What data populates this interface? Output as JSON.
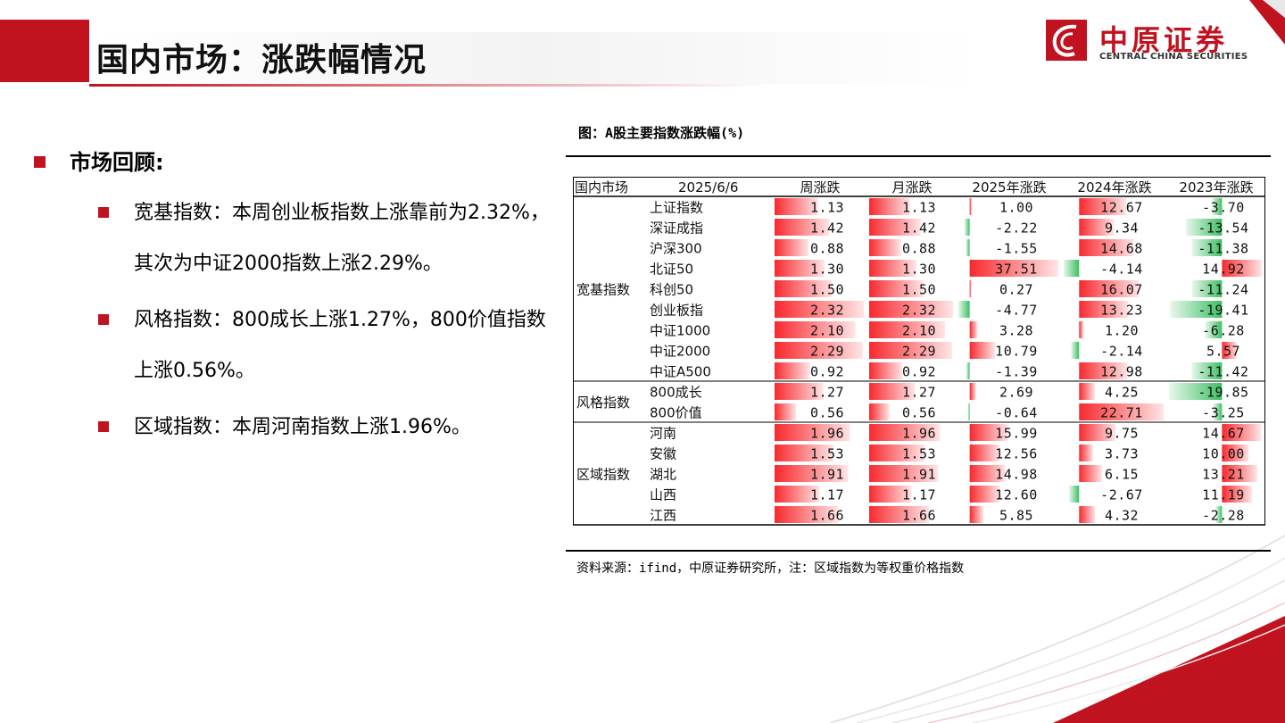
{
  "header": {
    "title": "国内市场：涨跌幅情况"
  },
  "logo": {
    "cn": "中原证券",
    "en": "CENTRAL CHINA SECURITIES"
  },
  "review": {
    "heading": "市场回顾:",
    "items": [
      "宽基指数：本周创业板指数上涨靠前为2.32%，其次为中证2000指数上涨2.29%。",
      "风格指数：800成长上涨1.27%，800价值指数上涨0.56%。",
      "区域指数：本周河南指数上涨1.96%。"
    ]
  },
  "figure": {
    "title": "图：A股主要指数涨跌幅(%)",
    "source": "资料来源：ifind，中原证券研究所，注：区域指数为等权重价格指数"
  },
  "table": {
    "headers": [
      "国内市场",
      "2025/6/6",
      "周涨跌",
      "月涨跌",
      "2025年涨跌",
      "2024年涨跌",
      "2023年涨跌"
    ],
    "groups": [
      {
        "name": "宽基指数",
        "rows": [
          {
            "label": "上证指数",
            "values": [
              "1.13",
              "1.13",
              "1.00",
              "12.67",
              "-3.70"
            ]
          },
          {
            "label": "深证成指",
            "values": [
              "1.42",
              "1.42",
              "-2.22",
              "9.34",
              "-13.54"
            ]
          },
          {
            "label": "沪深300",
            "values": [
              "0.88",
              "0.88",
              "-1.55",
              "14.68",
              "-11.38"
            ]
          },
          {
            "label": "北证50",
            "values": [
              "1.30",
              "1.30",
              "37.51",
              "-4.14",
              "14.92"
            ]
          },
          {
            "label": "科创50",
            "values": [
              "1.50",
              "1.50",
              "0.27",
              "16.07",
              "-11.24"
            ]
          },
          {
            "label": "创业板指",
            "values": [
              "2.32",
              "2.32",
              "-4.77",
              "13.23",
              "-19.41"
            ]
          },
          {
            "label": "中证1000",
            "values": [
              "2.10",
              "2.10",
              "3.28",
              "1.20",
              "-6.28"
            ]
          },
          {
            "label": "中证2000",
            "values": [
              "2.29",
              "2.29",
              "10.79",
              "-2.14",
              "5.57"
            ]
          },
          {
            "label": "中证A500",
            "values": [
              "0.92",
              "0.92",
              "-1.39",
              "12.98",
              "-11.42"
            ]
          }
        ]
      },
      {
        "name": "风格指数",
        "rows": [
          {
            "label": "800成长",
            "values": [
              "1.27",
              "1.27",
              "2.69",
              "4.25",
              "-19.85"
            ]
          },
          {
            "label": "800价值",
            "values": [
              "0.56",
              "0.56",
              "-0.64",
              "22.71",
              "-3.25"
            ]
          }
        ]
      },
      {
        "name": "区域指数",
        "rows": [
          {
            "label": "河南",
            "values": [
              "1.96",
              "1.96",
              "15.99",
              "9.75",
              "14.67"
            ]
          },
          {
            "label": "安徽",
            "values": [
              "1.53",
              "1.53",
              "12.56",
              "3.73",
              "10.00"
            ]
          },
          {
            "label": "湖北",
            "values": [
              "1.91",
              "1.91",
              "14.98",
              "6.15",
              "13.21"
            ]
          },
          {
            "label": "山西",
            "values": [
              "1.17",
              "1.17",
              "12.60",
              "-2.67",
              "11.19"
            ]
          },
          {
            "label": "江西",
            "values": [
              "1.66",
              "1.66",
              "5.85",
              "4.32",
              "-2.28"
            ]
          }
        ]
      }
    ]
  },
  "colors": {
    "brand_red": "#c1121f",
    "bar_positive": "#f8292e",
    "bar_negative": "#3cbf63"
  }
}
